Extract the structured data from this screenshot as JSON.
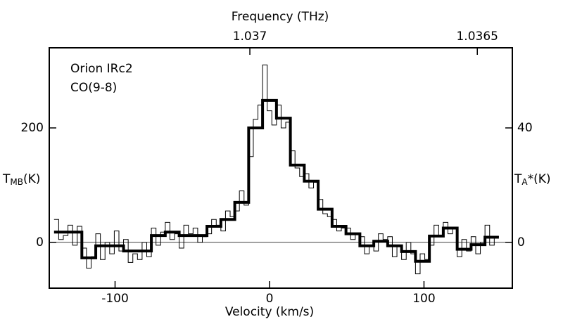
{
  "chart_data": {
    "type": "line",
    "xlabel": "Velocity (km/s)",
    "x2label": "Frequency (THz)",
    "ylabel": [
      "T",
      "MB",
      "(K)"
    ],
    "y2label": [
      "T",
      "A",
      "*(K)"
    ],
    "annotations": [
      "Orion IRc2",
      "CO(9-8)"
    ],
    "xlim": [
      -142.6,
      157.2
    ],
    "xticks": [
      -100,
      0,
      100
    ],
    "x2lim": [
      1.037441,
      1.036423
    ],
    "x2ticks": [
      1.037,
      1.0365
    ],
    "ylim": [
      -80,
      340
    ],
    "yticks": [
      0,
      200
    ],
    "y2lim": [
      -16,
      68
    ],
    "y2ticks": [
      0,
      40
    ],
    "series": [
      {
        "color": "#000000",
        "x": [
          -138,
          -135,
          -132,
          -129,
          -126,
          -123,
          -120,
          -117,
          -114,
          -111,
          -108,
          -105,
          -102,
          -99,
          -96,
          -93,
          -90,
          -87,
          -84,
          -81,
          -78,
          -75,
          -72,
          -69,
          -66,
          -63,
          -60,
          -57,
          -54,
          -51,
          -48,
          -45,
          -42,
          -39,
          -36,
          -33,
          -30,
          -27,
          -24,
          -21,
          -18,
          -15,
          -12,
          -9,
          -6,
          -3,
          0,
          3,
          6,
          9,
          12,
          15,
          18,
          21,
          24,
          27,
          30,
          33,
          36,
          39,
          42,
          45,
          48,
          51,
          54,
          57,
          60,
          63,
          66,
          69,
          72,
          75,
          78,
          81,
          84,
          87,
          90,
          93,
          96,
          99,
          102,
          105,
          108,
          111,
          114,
          117,
          120,
          123,
          126,
          129,
          132,
          135,
          138,
          141,
          144,
          147
        ],
        "values": [
          40,
          5,
          12,
          30,
          -5,
          28,
          -10,
          -45,
          -25,
          15,
          -30,
          0,
          -20,
          20,
          -15,
          5,
          -35,
          -20,
          -30,
          0,
          -25,
          25,
          -5,
          18,
          35,
          5,
          15,
          -10,
          30,
          15,
          25,
          0,
          10,
          15,
          40,
          30,
          20,
          55,
          45,
          55,
          90,
          65,
          150,
          215,
          240,
          310,
          230,
          205,
          240,
          200,
          210,
          160,
          130,
          115,
          120,
          95,
          105,
          75,
          50,
          45,
          40,
          20,
          25,
          25,
          5,
          15,
          10,
          -20,
          -5,
          -15,
          15,
          5,
          10,
          -25,
          -5,
          -30,
          0,
          -20,
          -55,
          -20,
          -30,
          -5,
          30,
          10,
          35,
          15,
          25,
          -25,
          5,
          -15,
          10,
          -20,
          0,
          30,
          -5,
          10
        ]
      },
      {
        "color": "#000000",
        "x": [
          -135,
          -126,
          -117,
          -108,
          -99,
          -90,
          -81,
          -72,
          -63,
          -54,
          -45,
          -36,
          -27,
          -18,
          -9,
          0,
          9,
          18,
          27,
          36,
          45,
          54,
          63,
          72,
          81,
          90,
          99,
          108,
          117,
          126,
          135,
          144
        ],
        "values": [
          18,
          18,
          -27,
          -6,
          -6,
          -15,
          -15,
          12,
          18,
          12,
          12,
          28,
          40,
          70,
          200,
          248,
          217,
          135,
          107,
          58,
          28,
          15,
          -6,
          2,
          -6,
          -16,
          -33,
          11,
          25,
          -12,
          -4,
          9
        ]
      }
    ]
  }
}
